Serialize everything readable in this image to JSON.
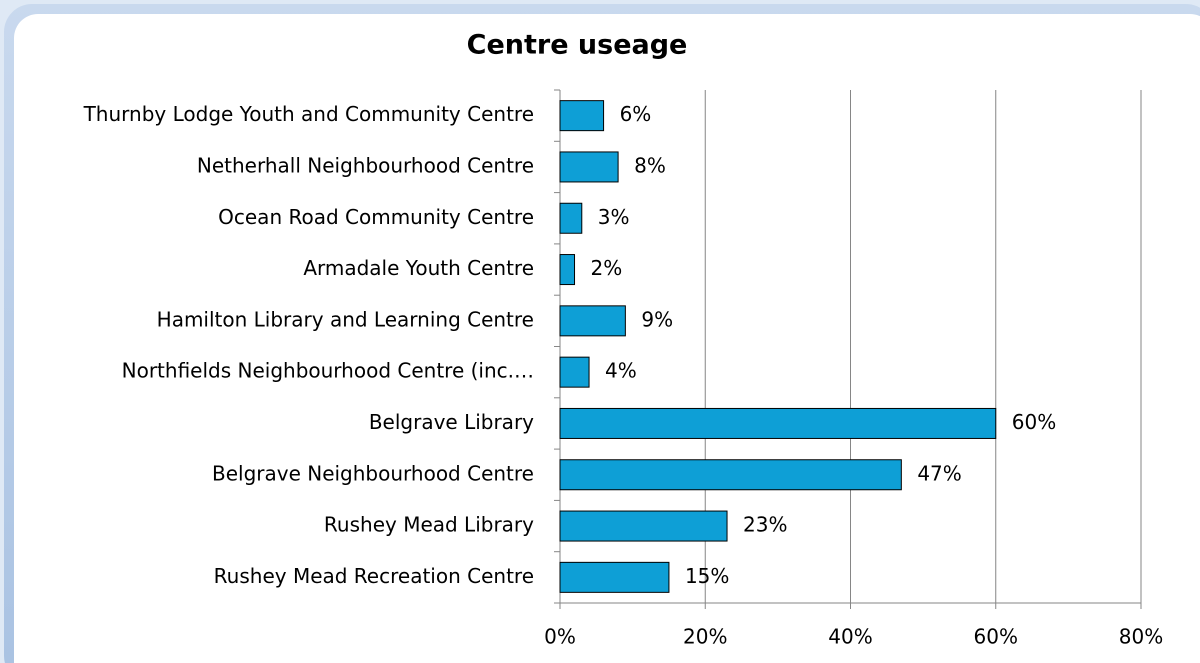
{
  "chart_data": {
    "type": "bar",
    "orientation": "horizontal",
    "title": "Centre useage",
    "categories": [
      "Thurnby Lodge Youth and Community Centre",
      "Netherhall Neighbourhood Centre",
      "Ocean Road Community Centre",
      "Armadale Youth Centre",
      "Hamilton Library and Learning Centre",
      "Northfields Neighbourhood Centre (inc.…",
      "Belgrave Library",
      "Belgrave Neighbourhood Centre",
      "Rushey Mead Library",
      "Rushey Mead Recreation Centre"
    ],
    "values": [
      6,
      8,
      3,
      2,
      9,
      4,
      60,
      47,
      23,
      15
    ],
    "value_labels": [
      "6%",
      "8%",
      "3%",
      "2%",
      "9%",
      "4%",
      "60%",
      "47%",
      "23%",
      "15%"
    ],
    "color": "#0e9fd6",
    "xlim": [
      0,
      80
    ],
    "xticks": [
      {
        "value": 0,
        "label": "0%"
      },
      {
        "value": 20,
        "label": "20%"
      },
      {
        "value": 40,
        "label": "40%"
      },
      {
        "value": 60,
        "label": "60%"
      },
      {
        "value": 80,
        "label": "80%"
      }
    ],
    "grid": true
  }
}
